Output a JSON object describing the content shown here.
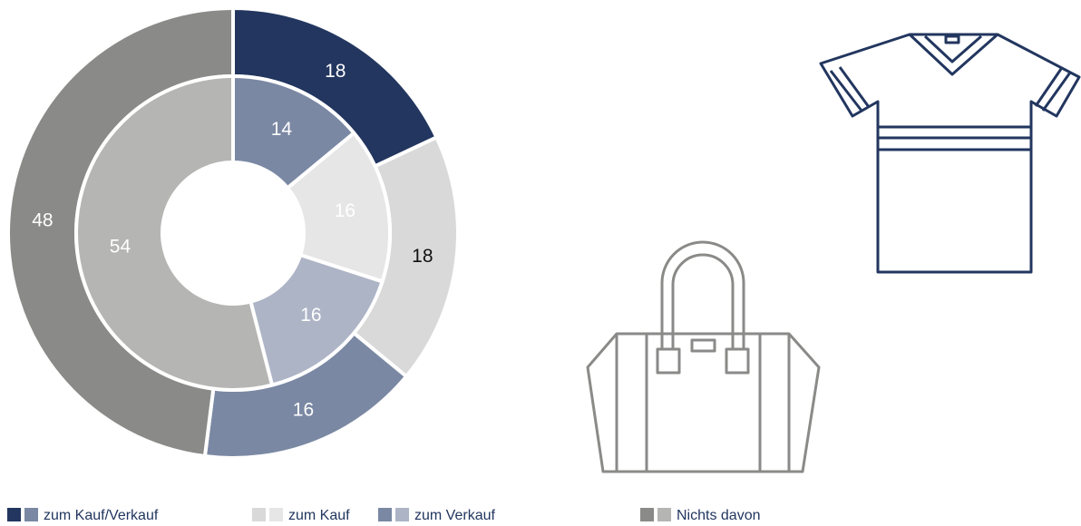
{
  "chart_data": {
    "type": "donut",
    "categories": [
      "zum Kauf/Verkauf",
      "zum Kauf",
      "zum Verkauf",
      "Nichts davon"
    ],
    "series": [
      {
        "values": [
          18,
          18,
          16,
          48
        ],
        "colors": [
          "#22365f",
          "#d9d9d9",
          "#7a88a3",
          "#8a8a88"
        ]
      },
      {
        "values": [
          14,
          16,
          16,
          54
        ],
        "colors": [
          "#7a88a3",
          "#e6e6e6",
          "#adb4c6",
          "#b5b5b3"
        ]
      }
    ]
  }
}
